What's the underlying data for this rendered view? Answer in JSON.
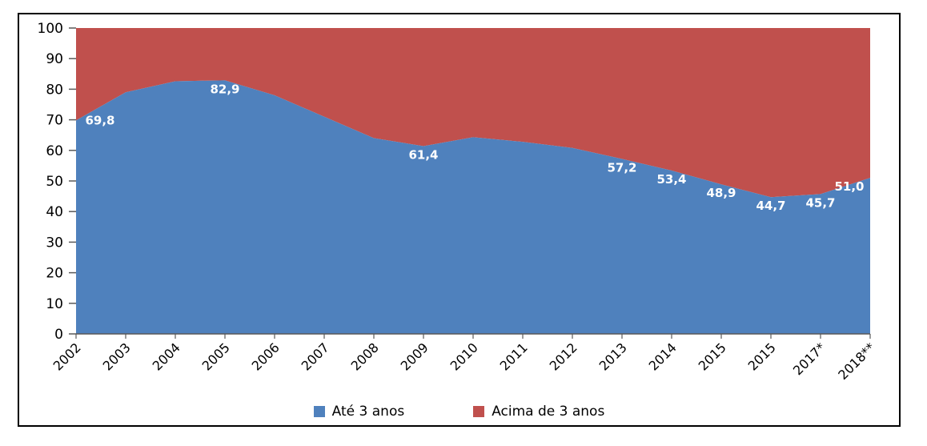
{
  "chart_data": {
    "type": "area",
    "stacked": true,
    "stack_total": 100,
    "title": "",
    "categories": [
      "2002",
      "2003",
      "2004",
      "2005",
      "2006",
      "2007",
      "2008",
      "2009",
      "2010",
      "2011",
      "2012",
      "2013",
      "2014",
      "2015",
      "2015",
      "2017*",
      "2018**"
    ],
    "series": [
      {
        "name": "Até 3 anos",
        "color": "#4F81BD",
        "values": [
          69.8,
          79.0,
          82.6,
          82.9,
          78.0,
          71.0,
          64.0,
          61.4,
          64.3,
          62.8,
          60.8,
          57.2,
          53.4,
          48.9,
          44.7,
          45.7,
          51.0
        ],
        "data_labels": [
          "69,8",
          null,
          null,
          "82,9",
          null,
          null,
          null,
          "61,4",
          null,
          null,
          null,
          "57,2",
          "53,4",
          "48,9",
          "44,7",
          "45,7",
          "51,0"
        ],
        "data_label_color": "#FFFFFF"
      },
      {
        "name": "Acima de 3 anos",
        "color": "#C0504D",
        "values": [
          30.2,
          21.0,
          17.4,
          17.1,
          22.0,
          29.0,
          36.0,
          38.6,
          35.7,
          37.2,
          39.2,
          42.8,
          46.6,
          51.1,
          55.3,
          54.3,
          49.0
        ]
      }
    ],
    "y_axis": {
      "min": 0,
      "max": 100,
      "step": 10,
      "tick_labels": [
        "0",
        "10",
        "20",
        "30",
        "40",
        "50",
        "60",
        "70",
        "80",
        "90",
        "100"
      ]
    },
    "x_axis": {
      "label_rotation": -45
    },
    "legend": {
      "position": "bottom",
      "entries": [
        {
          "label": "Até 3 anos",
          "color": "#4F81BD"
        },
        {
          "label": "Acima de 3 anos",
          "color": "#C0504D"
        }
      ]
    },
    "grid": false,
    "axis_color": "#595959",
    "text_color": "#000000",
    "value_format": "comma-decimal"
  }
}
